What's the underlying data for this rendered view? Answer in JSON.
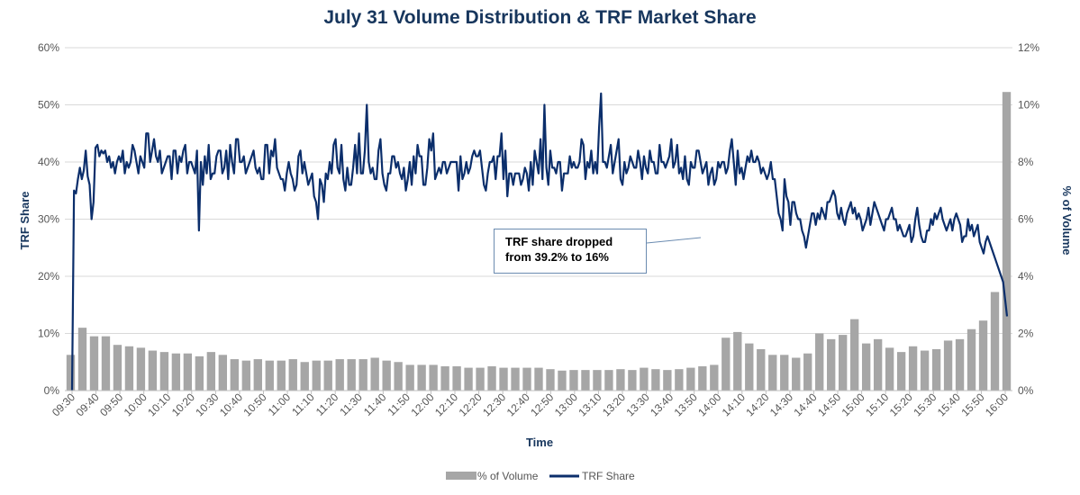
{
  "chart_data": {
    "type": "bar+line",
    "title": "July 31 Volume Distribution & TRF Market Share",
    "xlabel": "Time",
    "ylabel_left": "TRF Share",
    "ylabel_right": "% of Volume",
    "ylim_left": [
      0,
      60
    ],
    "ylim_right": [
      0,
      12
    ],
    "y_left_ticks": [
      "0%",
      "10%",
      "20%",
      "30%",
      "40%",
      "50%",
      "60%"
    ],
    "y_right_ticks": [
      "0%",
      "2%",
      "4%",
      "6%",
      "8%",
      "10%",
      "12%"
    ],
    "grid": true,
    "legend_position": "bottom",
    "x_ticks": [
      "09:30",
      "09:40",
      "09:50",
      "10:00",
      "10:10",
      "10:20",
      "10:30",
      "10:40",
      "10:50",
      "11:00",
      "11:10",
      "11:20",
      "11:30",
      "11:40",
      "11:50",
      "12:00",
      "12:10",
      "12:20",
      "12:30",
      "12:40",
      "12:50",
      "13:00",
      "13:10",
      "13:20",
      "13:30",
      "13:40",
      "13:50",
      "14:00",
      "14:10",
      "14:20",
      "14:30",
      "14:40",
      "14:50",
      "15:00",
      "15:10",
      "15:20",
      "15:30",
      "15:40",
      "15:50",
      "16:00"
    ],
    "bar_series": {
      "name": "% of Volume",
      "color": "#a6a6a6",
      "values": [
        1.25,
        2.2,
        1.9,
        1.9,
        1.6,
        1.55,
        1.5,
        1.4,
        1.35,
        1.3,
        1.3,
        1.2,
        1.35,
        1.25,
        1.1,
        1.05,
        1.1,
        1.05,
        1.05,
        1.1,
        1.0,
        1.05,
        1.05,
        1.1,
        1.1,
        1.1,
        1.15,
        1.05,
        1.0,
        0.9,
        0.9,
        0.9,
        0.85,
        0.85,
        0.8,
        0.8,
        0.85,
        0.8,
        0.8,
        0.8,
        0.8,
        0.75,
        0.7,
        0.72,
        0.72,
        0.72,
        0.72,
        0.75,
        0.72,
        0.8,
        0.75,
        0.72,
        0.75,
        0.8,
        0.85,
        0.9,
        1.85,
        2.05,
        1.65,
        1.45,
        1.25,
        1.25,
        1.15,
        1.3,
        2.0,
        1.8,
        1.95,
        2.5,
        1.65,
        1.8,
        1.5,
        1.35,
        1.55,
        1.4,
        1.45,
        1.75,
        1.8,
        2.15,
        2.45,
        3.45,
        10.45
      ]
    },
    "line_series": {
      "name": "TRF Share",
      "color": "#0b2e6b",
      "values": [
        0,
        35,
        34.5,
        37,
        39,
        37,
        38.5,
        42,
        37.5,
        36,
        30,
        33,
        42.5,
        43,
        41,
        42,
        41.5,
        42,
        40,
        41,
        39,
        40,
        38,
        40,
        41,
        40,
        42,
        38,
        40,
        39,
        40,
        43,
        42,
        40,
        38,
        41,
        40,
        39,
        45,
        45,
        40,
        42,
        44,
        41,
        40,
        42,
        38,
        39,
        40,
        41,
        41,
        37,
        42,
        42,
        38,
        41,
        40,
        42,
        43,
        38,
        40,
        40,
        39,
        38,
        42,
        28,
        40,
        36,
        41,
        38,
        43,
        37,
        38,
        38,
        41,
        42,
        42,
        38,
        39,
        42,
        37,
        43,
        40,
        38,
        44,
        44,
        40,
        40,
        41,
        38,
        39,
        40,
        41,
        42,
        39,
        38,
        39,
        37,
        37,
        43,
        43,
        38,
        42,
        41,
        44,
        39,
        38,
        37,
        37,
        35,
        38,
        40,
        38,
        37,
        35,
        36,
        41,
        42,
        38,
        40,
        38,
        36,
        37,
        38,
        34,
        33,
        30,
        37,
        36,
        33,
        38,
        37,
        40,
        38,
        43,
        44,
        39,
        38,
        43,
        37,
        35,
        39,
        36,
        36,
        39,
        43,
        38,
        45,
        38,
        38,
        42,
        50,
        40,
        38,
        39,
        37,
        37,
        42,
        44,
        38,
        36,
        35,
        38,
        38,
        41,
        41,
        39,
        40,
        38,
        37,
        39,
        35,
        37,
        40,
        36,
        41,
        38,
        43,
        41,
        41,
        36,
        36,
        39,
        44,
        42,
        45,
        37,
        38,
        39,
        38,
        40,
        40,
        38,
        39,
        40,
        40,
        40,
        40,
        35,
        41,
        37,
        38,
        40,
        38,
        39,
        41,
        42,
        41,
        41,
        42,
        39,
        36,
        35,
        38,
        40,
        40,
        41,
        37,
        41,
        41,
        45,
        37,
        42,
        34,
        38,
        38,
        36,
        38,
        38,
        38,
        36,
        37,
        39,
        38,
        35,
        40,
        36,
        42,
        40,
        38,
        44,
        37,
        50,
        39,
        36,
        42,
        39,
        39,
        38,
        40,
        40,
        35,
        38,
        38,
        38,
        41,
        39,
        40,
        39,
        39,
        40,
        44,
        43,
        37,
        40,
        39,
        42,
        38,
        40,
        38,
        46,
        52,
        40,
        40,
        39,
        41,
        43,
        38,
        40,
        42,
        44,
        37,
        36,
        40,
        38,
        39,
        41,
        40,
        39,
        39,
        42,
        40,
        37,
        41,
        39,
        38,
        42,
        40,
        40,
        38,
        38,
        43,
        40,
        40,
        39,
        40,
        41,
        44,
        39,
        40,
        43,
        38,
        39,
        37,
        41,
        37,
        36,
        40,
        39,
        39,
        42,
        42,
        40,
        38,
        39,
        40,
        36,
        38,
        39,
        36,
        37,
        40,
        39,
        40,
        40,
        38,
        39,
        42,
        44,
        40,
        36,
        42,
        38,
        39,
        37,
        39,
        41,
        40,
        42,
        40,
        40,
        41,
        40,
        38,
        39,
        38,
        37,
        38,
        40,
        37,
        37,
        34,
        31,
        30,
        28,
        37,
        34,
        33,
        29,
        33,
        33,
        31,
        30,
        30,
        28,
        27,
        25,
        27,
        29,
        31,
        31,
        29,
        31,
        30,
        32,
        31,
        30,
        33,
        33,
        34,
        35,
        34,
        31,
        30,
        32,
        30,
        29,
        31,
        32,
        33,
        31,
        32,
        30,
        31,
        30,
        28,
        29,
        30,
        32,
        29,
        31,
        33,
        32,
        31,
        30,
        29,
        28,
        30,
        30,
        31,
        32,
        30,
        30,
        28,
        29,
        28,
        27,
        27,
        28,
        29,
        26,
        27,
        30,
        32,
        29,
        27,
        26,
        26,
        28,
        28,
        30,
        29,
        31,
        30,
        31,
        32,
        30,
        29,
        28,
        29,
        30,
        28,
        30,
        31,
        30,
        29,
        26,
        27,
        27,
        30,
        28,
        29,
        27,
        28,
        29,
        26,
        25,
        24,
        26,
        27,
        26,
        25,
        24,
        23,
        22,
        21,
        20,
        19,
        16,
        13
      ]
    },
    "annotation": {
      "line1": "TRF share dropped",
      "line2": "from 39.2% to 16%"
    }
  }
}
